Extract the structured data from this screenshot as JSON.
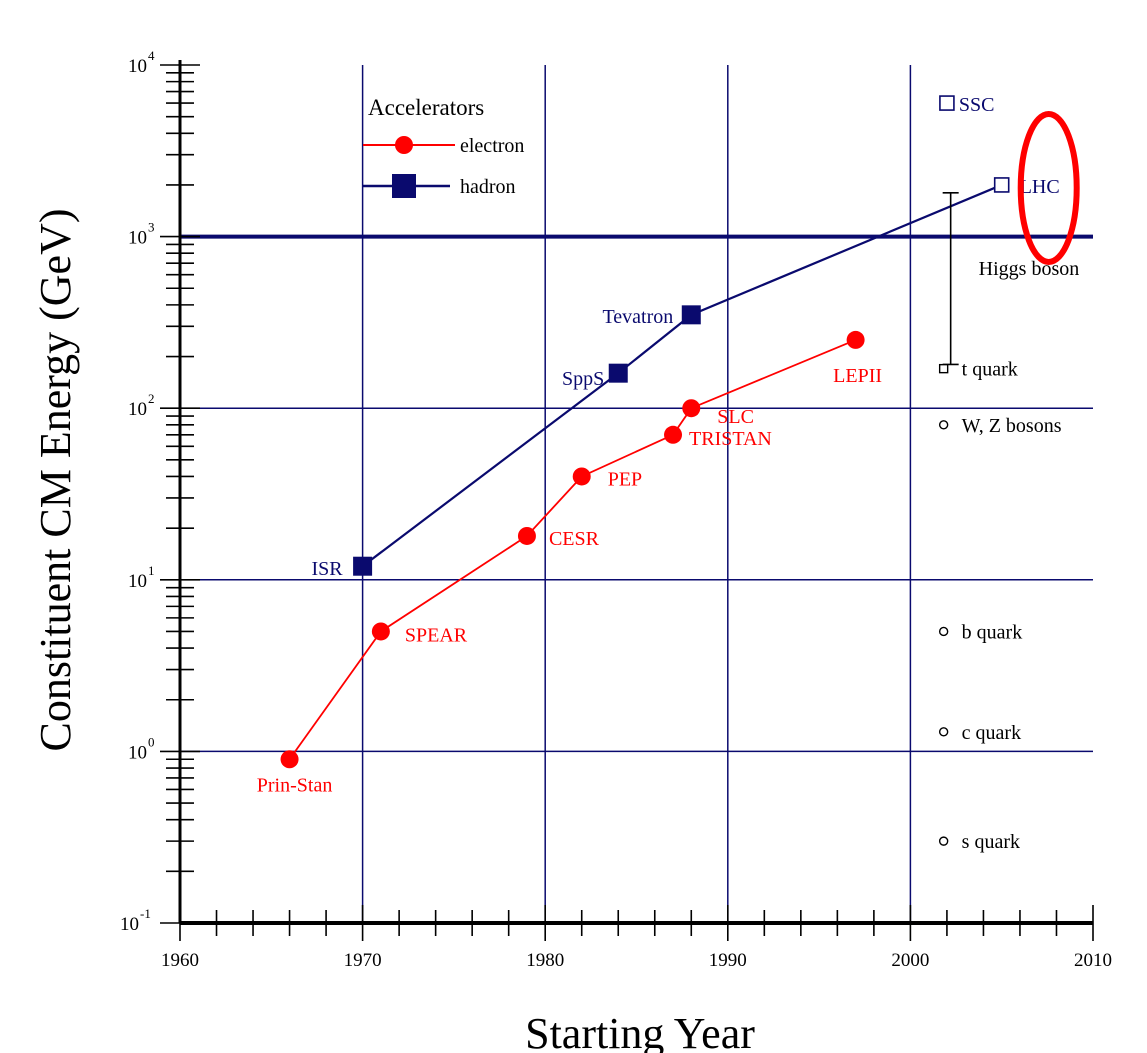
{
  "chart_data": {
    "type": "line",
    "xlabel": "Starting Year",
    "ylabel": "Constituent CM Energy (GeV)",
    "x_scale": "linear",
    "y_scale": "log",
    "xlim": [
      1960,
      2010
    ],
    "ylim": [
      0.1,
      10000
    ],
    "x_ticks": [
      "1960",
      "1970",
      "1980",
      "1990",
      "2000",
      "2010"
    ],
    "y_ticks": [
      {
        "base": "10",
        "exp": "-1"
      },
      {
        "base": "10",
        "exp": "0"
      },
      {
        "base": "10",
        "exp": "1"
      },
      {
        "base": "10",
        "exp": "2"
      },
      {
        "base": "10",
        "exp": "3"
      },
      {
        "base": "10",
        "exp": "4"
      }
    ],
    "grid": true,
    "legend": {
      "title": "Accelerators",
      "placement": "top-left",
      "entries": [
        "electron",
        "hadron"
      ]
    },
    "colors": {
      "electron": "#ff0000",
      "hadron": "#0a0a6e",
      "grid": "#0a0a6e",
      "highlight": "#ff0000"
    },
    "series": [
      {
        "name": "electron",
        "points": [
          {
            "x": 1966,
            "y": 0.9,
            "label": "Prin-Stan"
          },
          {
            "x": 1971,
            "y": 5,
            "label": "SPEAR"
          },
          {
            "x": 1979,
            "y": 18,
            "label": "CESR"
          },
          {
            "x": 1982,
            "y": 40,
            "label": "PEP"
          },
          {
            "x": 1987,
            "y": 70,
            "label": "TRISTAN"
          },
          {
            "x": 1988,
            "y": 100,
            "label": "SLC"
          },
          {
            "x": 1997,
            "y": 250,
            "label": "LEPII"
          }
        ]
      },
      {
        "name": "hadron",
        "points": [
          {
            "x": 1970,
            "y": 12,
            "label": "ISR"
          },
          {
            "x": 1984,
            "y": 160,
            "label": "SppS"
          },
          {
            "x": 1988,
            "y": 350,
            "label": "Tevatron"
          },
          {
            "x": 2005,
            "y": 2000,
            "label": "LHC",
            "open": true
          }
        ]
      }
    ],
    "standalone_points": [
      {
        "x": 2002,
        "y": 6000,
        "label": "SSC",
        "marker": "open-square"
      }
    ],
    "particles": [
      {
        "x": 2001,
        "y": 170,
        "label": "t quark",
        "marker": "open-square"
      },
      {
        "x": 2001,
        "y": 80,
        "label": "W, Z bosons",
        "marker": "open-circle"
      },
      {
        "x": 2001,
        "y": 5,
        "label": "b quark",
        "marker": "open-circle"
      },
      {
        "x": 2001,
        "y": 1.3,
        "label": "c quark",
        "marker": "open-circle"
      },
      {
        "x": 2001,
        "y": 0.3,
        "label": "s quark",
        "marker": "open-circle"
      }
    ],
    "range_annotation": {
      "x": 2001,
      "y_low": 180,
      "y_high": 1800,
      "label": "Higgs boson"
    },
    "highlight": {
      "target": "LHC",
      "shape": "ellipse"
    }
  }
}
